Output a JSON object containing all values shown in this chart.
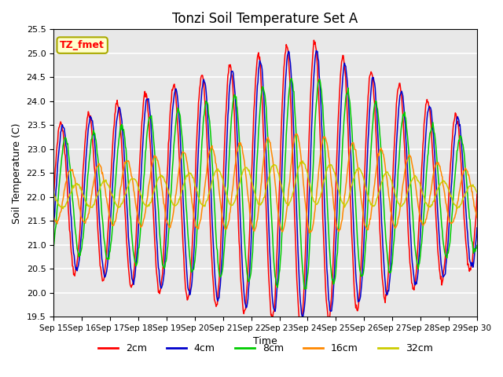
{
  "title": "Tonzi Soil Temperature Set A",
  "xlabel": "Time",
  "ylabel": "Soil Temperature (C)",
  "ylim": [
    19.5,
    25.5
  ],
  "n_days": 15,
  "spd": 48,
  "base_temp": 22.0,
  "background_color": "#e8e8e8",
  "c2": "#ff0000",
  "c4": "#0000cc",
  "c8": "#00cc00",
  "c16": "#ff8800",
  "c32": "#cccc00",
  "legend_label": "TZ_fmet",
  "xtick_labels": [
    "Sep 15",
    "Sep 16",
    "Sep 17",
    "Sep 18",
    "Sep 19",
    "Sep 20",
    "Sep 21",
    "Sep 22",
    "Sep 23",
    "Sep 24",
    "Sep 25",
    "Sep 26",
    "Sep 27",
    "Sep 28",
    "Sep 29",
    "Sep 30"
  ],
  "lw": 1.1
}
